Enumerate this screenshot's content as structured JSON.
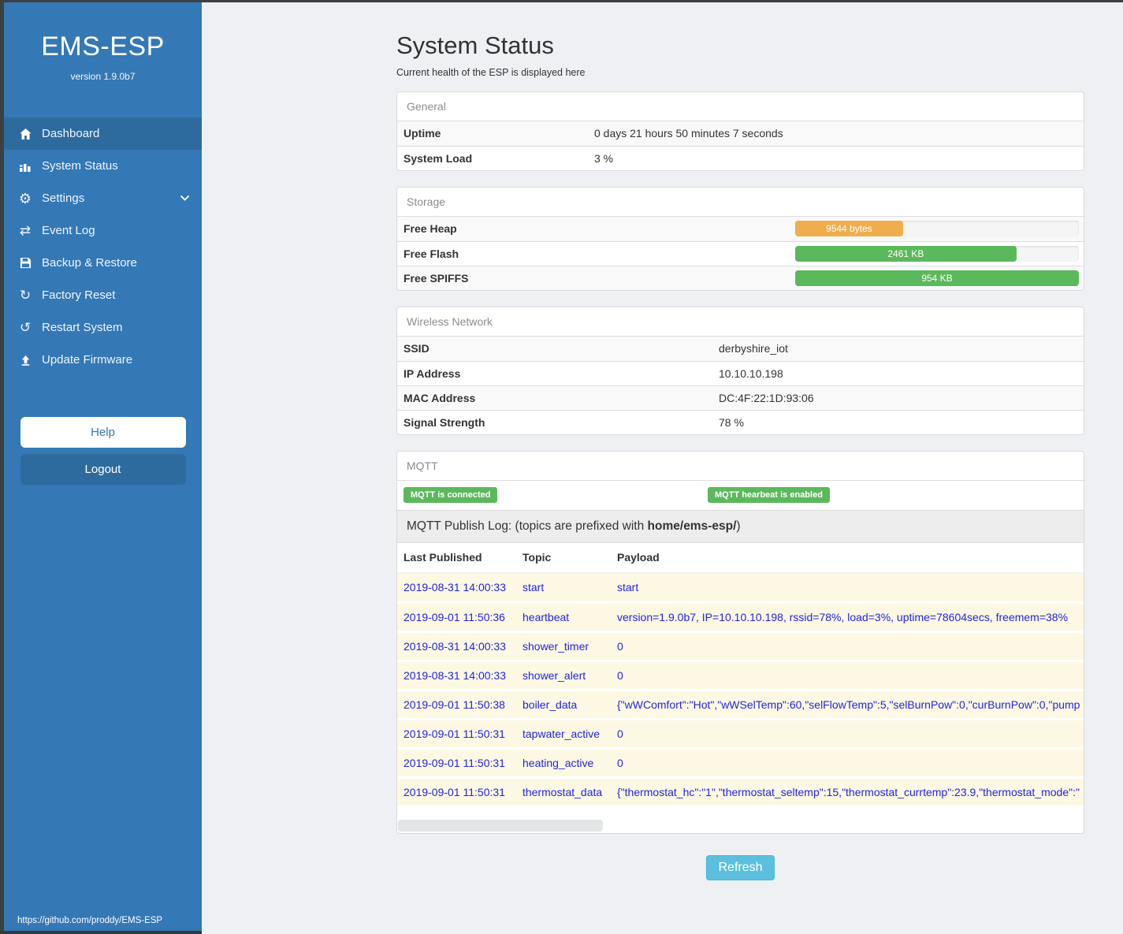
{
  "app": {
    "title": "EMS-ESP",
    "version": "version 1.9.0b7",
    "footer_link": "https://github.com/proddy/EMS-ESP"
  },
  "sidebar": {
    "items": [
      {
        "label": "Dashboard",
        "icon": "home-icon",
        "active": true,
        "chevron": false
      },
      {
        "label": "System Status",
        "icon": "chart-icon",
        "active": false,
        "chevron": false
      },
      {
        "label": "Settings",
        "icon": "gear-icon",
        "active": false,
        "chevron": true
      },
      {
        "label": "Event Log",
        "icon": "arrows-icon",
        "active": false,
        "chevron": false
      },
      {
        "label": "Backup & Restore",
        "icon": "save-icon",
        "active": false,
        "chevron": false
      },
      {
        "label": "Factory Reset",
        "icon": "redo-icon",
        "active": false,
        "chevron": false
      },
      {
        "label": "Restart System",
        "icon": "refresh-icon",
        "active": false,
        "chevron": false
      },
      {
        "label": "Update Firmware",
        "icon": "upload-icon",
        "active": false,
        "chevron": false
      }
    ],
    "help_label": "Help",
    "logout_label": "Logout"
  },
  "page": {
    "title": "System Status",
    "subtitle": "Current health of the ESP is displayed here",
    "refresh_label": "Refresh"
  },
  "panels": {
    "general": {
      "title": "General",
      "rows": [
        {
          "label": "Uptime",
          "value": "0 days 21 hours 50 minutes 7 seconds"
        },
        {
          "label": "System Load",
          "value": "3 %"
        }
      ]
    },
    "storage": {
      "title": "Storage",
      "rows": [
        {
          "label": "Free Heap",
          "value": "9544 bytes",
          "percent": 38,
          "color": "#f0ad4e"
        },
        {
          "label": "Free Flash",
          "value": "2461 KB",
          "percent": 78,
          "color": "#5cb85c"
        },
        {
          "label": "Free SPIFFS",
          "value": "954 KB",
          "percent": 100,
          "color": "#5cb85c"
        }
      ]
    },
    "wireless": {
      "title": "Wireless Network",
      "rows": [
        {
          "label": "SSID",
          "value": "derbyshire_iot"
        },
        {
          "label": "IP Address",
          "value": "10.10.10.198"
        },
        {
          "label": "MAC Address",
          "value": "DC:4F:22:1D:93:06"
        },
        {
          "label": "Signal Strength",
          "value": "78 %"
        }
      ]
    },
    "mqtt": {
      "title": "MQTT",
      "badges": [
        "MQTT is connected",
        "MQTT hearbeat is enabled"
      ],
      "log_title_prefix": "MQTT Publish Log: (topics are prefixed with ",
      "log_title_bold": "home/ems-esp/",
      "log_title_suffix": ")",
      "table": {
        "columns": [
          "Last Published",
          "Topic",
          "Payload"
        ],
        "rows": [
          {
            "date": "2019-08-31 14:00:33",
            "topic": "start",
            "payload": "start"
          },
          {
            "date": "2019-09-01 11:50:36",
            "topic": "heartbeat",
            "payload": "version=1.9.0b7, IP=10.10.10.198, rssid=78%, load=3%, uptime=78604secs, freemem=38%"
          },
          {
            "date": "2019-08-31 14:00:33",
            "topic": "shower_timer",
            "payload": "0"
          },
          {
            "date": "2019-08-31 14:00:33",
            "topic": "shower_alert",
            "payload": "0"
          },
          {
            "date": "2019-09-01 11:50:38",
            "topic": "boiler_data",
            "payload": "{\"wWComfort\":\"Hot\",\"wWSelTemp\":60,\"selFlowTemp\":5,\"selBurnPow\":0,\"curBurnPow\":0,\"pump"
          },
          {
            "date": "2019-09-01 11:50:31",
            "topic": "tapwater_active",
            "payload": "0"
          },
          {
            "date": "2019-09-01 11:50:31",
            "topic": "heating_active",
            "payload": "0"
          },
          {
            "date": "2019-09-01 11:50:31",
            "topic": "thermostat_data",
            "payload": "{\"thermostat_hc\":\"1\",\"thermostat_seltemp\":15,\"thermostat_currtemp\":23.9,\"thermostat_mode\":\""
          }
        ]
      }
    }
  },
  "colors": {
    "sidebar": "#3478b5",
    "sidebar_active": "#2d6b9f",
    "badge_green": "#5cb85c",
    "bar_orange": "#f0ad4e",
    "bar_green": "#5cb85c",
    "refresh_blue": "#5bc0de",
    "log_text_blue": "#2424dd",
    "row_yellow": "#fcf8e3"
  }
}
